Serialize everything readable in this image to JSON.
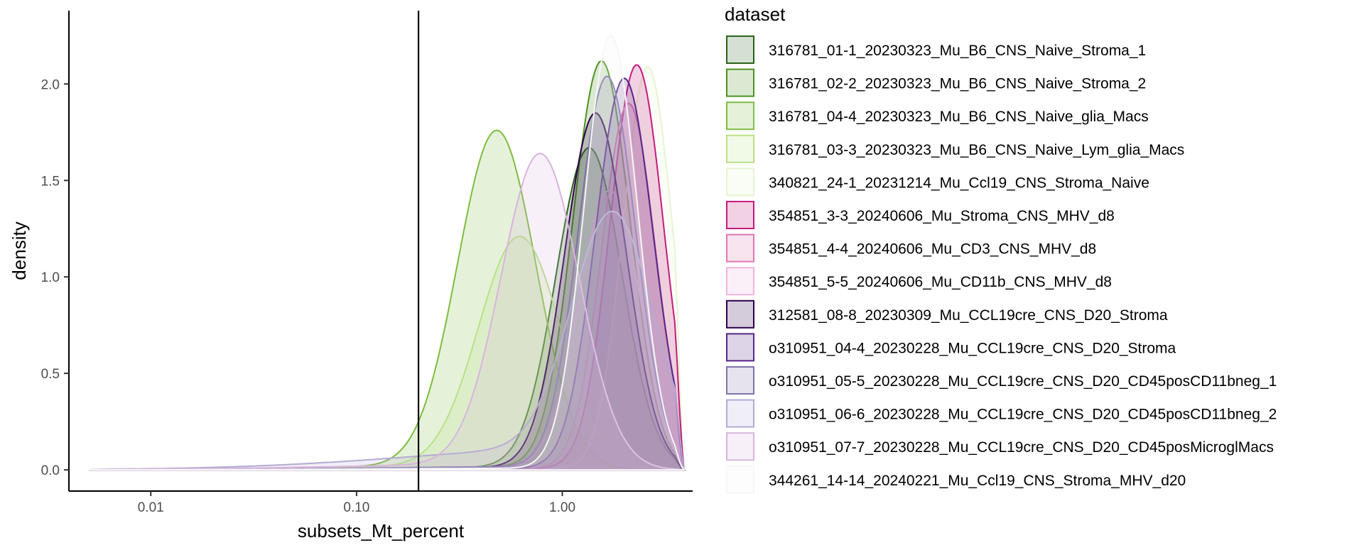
{
  "chart_data": {
    "type": "area",
    "xlabel": "subsets_Mt_percent",
    "ylabel": "density",
    "x_scale": "log10",
    "xlim": [
      0.004,
      4.3
    ],
    "ylim": [
      -0.11,
      2.38
    ],
    "x_ticks": [
      0.01,
      0.1,
      1.0
    ],
    "x_tick_labels": [
      "0.01",
      "0.10",
      "1.00"
    ],
    "y_ticks": [
      0.0,
      0.5,
      1.0,
      1.5,
      2.0
    ],
    "y_tick_labels": [
      "0.0",
      "0.5",
      "1.0",
      "1.5",
      "2.0"
    ],
    "vline": 0.2,
    "grid": false,
    "legend": {
      "title": "dataset",
      "position": "right"
    },
    "series": [
      {
        "name": "316781_01-1_20230323_Mu_B6_CNS_Naive_Stroma_1",
        "color": "#276419",
        "peak_x": 1.35,
        "peak_y": 1.67,
        "sd": 0.16,
        "tail": 0.015
      },
      {
        "name": "316781_02-2_20230323_Mu_B6_CNS_Naive_Stroma_2",
        "color": "#4d9221",
        "peak_x": 1.55,
        "peak_y": 2.12,
        "sd": 0.14,
        "tail": 0.02
      },
      {
        "name": "316781_04-4_20230323_Mu_B6_CNS_Naive_glia_Macs",
        "color": "#7fbc41",
        "peak_x": 0.48,
        "peak_y": 1.76,
        "sd": 0.19,
        "tail": 0.02
      },
      {
        "name": "316781_03-3_20230323_Mu_B6_CNS_Naive_Lym_glia_Macs",
        "color": "#b8e186",
        "peak_x": 0.62,
        "peak_y": 1.21,
        "sd": 0.2,
        "tail": 0.02
      },
      {
        "name": "340821_24-1_20231214_Mu_Ccl19_CNS_Stroma_Naive",
        "color": "#e6f5d0",
        "peak_x": 2.6,
        "peak_y": 2.09,
        "sd": 0.12,
        "tail": 0.01
      },
      {
        "name": "354851_3-3_20240606_Mu_Stroma_CNS_MHV_d8",
        "color": "#c51b7d",
        "peak_x": 2.3,
        "peak_y": 2.1,
        "sd": 0.13,
        "tail": 0.01
      },
      {
        "name": "354851_4-4_20240606_Mu_CD3_CNS_MHV_d8",
        "color": "#de77ae",
        "peak_x": 2.1,
        "peak_y": 1.9,
        "sd": 0.13,
        "tail": 0.01
      },
      {
        "name": "354851_5-5_20240606_Mu_CD11b_CNS_MHV_d8",
        "color": "#f1b6da",
        "peak_x": 1.7,
        "peak_y": 1.45,
        "sd": 0.15,
        "tail": 0.01
      },
      {
        "name": "312581_08-8_20230309_Mu_CCL19cre_CNS_D20_Stroma",
        "color": "#2d004b",
        "peak_x": 1.45,
        "peak_y": 1.85,
        "sd": 0.15,
        "tail": 0.015
      },
      {
        "name": "o310951_04-4_20230228_Mu_CCL19cre_CNS_D20_Stroma",
        "color": "#542788",
        "peak_x": 2.0,
        "peak_y": 2.03,
        "sd": 0.14,
        "tail": 0.01
      },
      {
        "name": "o310951_05-5_20230228_Mu_CCL19cre_CNS_D20_CD45posCD11bneg_1",
        "color": "#8073ac",
        "peak_x": 1.65,
        "peak_y": 2.04,
        "sd": 0.14,
        "tail": 0.02
      },
      {
        "name": "o310951_06-6_20230228_Mu_CCL19cre_CNS_D20_CD45posCD11bneg_2",
        "color": "#b2abd2",
        "peak_x": 1.75,
        "peak_y": 1.34,
        "sd": 0.2,
        "tail": 0.12
      },
      {
        "name": "o310951_07-7_20230228_Mu_CCL19cre_CNS_D20_CD45posMicroglMacs",
        "color": "#d8b4de",
        "peak_x": 0.78,
        "peak_y": 1.64,
        "sd": 0.19,
        "tail": 0.03
      },
      {
        "name": "344261_14-14_20240221_Mu_Ccl19_CNS_Stroma_MHV_d20",
        "color": "#f7f7f7",
        "peak_x": 1.72,
        "peak_y": 2.25,
        "sd": 0.13,
        "tail": 0.01
      }
    ]
  }
}
